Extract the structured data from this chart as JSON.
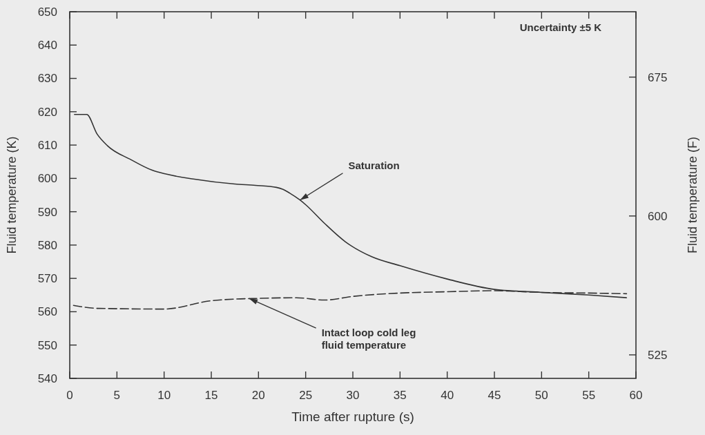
{
  "chart_data": {
    "type": "line",
    "xlabel": "Time after rupture (s)",
    "ylabel": "Fluid temperature (K)",
    "y2label": "Fluid temperature (F)",
    "xlim": [
      0,
      60
    ],
    "xticks": [
      0,
      5,
      10,
      15,
      20,
      25,
      30,
      35,
      40,
      45,
      50,
      55,
      60
    ],
    "ylim": [
      540,
      650
    ],
    "yticks": [
      540,
      550,
      560,
      570,
      580,
      590,
      600,
      610,
      620,
      630,
      640,
      650
    ],
    "y2lim": [
      512.3,
      710.3
    ],
    "y2ticks": [
      525,
      600,
      675
    ],
    "marker": "none",
    "series": [
      {
        "color": "#333333",
        "line_style": "solid",
        "x": [
          0.5,
          1.8,
          2.9,
          4,
          6.5,
          8.7,
          10.2,
          13.1,
          17.5,
          19.7,
          21.9,
          22.6,
          23.3,
          24.4,
          25,
          27,
          29.2,
          32,
          35,
          40,
          45,
          50,
          55,
          59
        ],
        "values": [
          619.2,
          619.2,
          613.3,
          609.8,
          605.6,
          602.5,
          601.3,
          599.8,
          598.3,
          597.9,
          597.3,
          596.7,
          595.6,
          593.5,
          592.1,
          586.5,
          581,
          576.5,
          573.8,
          569.8,
          566.7,
          565.8,
          565,
          564.2
        ]
      },
      {
        "color": "#333333",
        "line_style": "dashed",
        "x": [
          0.4,
          3,
          10,
          15,
          17.5,
          20,
          24,
          27,
          30,
          35,
          40,
          45,
          50,
          55,
          59
        ],
        "values": [
          561.9,
          561,
          560.8,
          563.3,
          563.8,
          564,
          564.2,
          563.5,
          564.6,
          565.6,
          566,
          566.3,
          565.8,
          565.6,
          565.4
        ]
      }
    ],
    "annotations": [
      "Uncertainty ±5 K",
      {
        "text": "Saturation",
        "x": 24.4,
        "y": 593.5
      },
      {
        "text": "Intact loop cold leg\nfluid temperature",
        "x": 19,
        "y": 564
      }
    ]
  }
}
